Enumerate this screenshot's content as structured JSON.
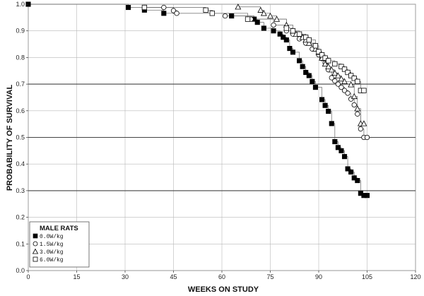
{
  "chart_data": {
    "type": "scatter",
    "xlabel": "WEEKS ON STUDY",
    "ylabel": "PROBABILITY OF SURVIVAL",
    "xlim": [
      0,
      120
    ],
    "ylim": [
      0,
      1
    ],
    "x_ticks": [
      "0",
      "15",
      "30",
      "45",
      "60",
      "75",
      "90",
      "105",
      "120"
    ],
    "y_ticks": [
      "0.0",
      "0.1",
      "0.2",
      "0.3",
      "0.4",
      "0.5",
      "0.6",
      "0.7",
      "0.8",
      "0.9",
      "1.0"
    ],
    "grid": true,
    "legend_title": "MALE RATS",
    "legend_position": "bottom-left",
    "series": [
      {
        "name": "0.0W/kg",
        "marker": "filled-square",
        "points": [
          [
            0,
            1.0
          ],
          [
            31,
            0.988
          ],
          [
            36,
            0.978
          ],
          [
            42,
            0.966
          ],
          [
            63,
            0.956
          ],
          [
            70,
            0.944
          ],
          [
            71,
            0.932
          ],
          [
            73,
            0.91
          ],
          [
            76,
            0.9
          ],
          [
            78,
            0.888
          ],
          [
            79,
            0.876
          ],
          [
            80,
            0.866
          ],
          [
            81,
            0.834
          ],
          [
            82,
            0.82
          ],
          [
            84,
            0.788
          ],
          [
            85,
            0.766
          ],
          [
            86,
            0.744
          ],
          [
            87,
            0.732
          ],
          [
            88,
            0.71
          ],
          [
            89,
            0.688
          ],
          [
            91,
            0.642
          ],
          [
            92,
            0.62
          ],
          [
            93,
            0.598
          ],
          [
            94,
            0.552
          ],
          [
            95,
            0.484
          ],
          [
            96,
            0.462
          ],
          [
            97,
            0.45
          ],
          [
            98,
            0.428
          ],
          [
            99,
            0.382
          ],
          [
            100,
            0.37
          ],
          [
            101,
            0.348
          ],
          [
            102,
            0.338
          ],
          [
            103,
            0.29
          ],
          [
            104,
            0.282
          ],
          [
            105,
            0.282
          ]
        ]
      },
      {
        "name": "1.5W/kg",
        "marker": "open-circle",
        "points": [
          [
            36,
            0.988
          ],
          [
            42,
            0.988
          ],
          [
            45,
            0.976
          ],
          [
            46,
            0.966
          ],
          [
            61,
            0.956
          ],
          [
            69,
            0.944
          ],
          [
            76,
            0.922
          ],
          [
            80,
            0.9
          ],
          [
            82,
            0.888
          ],
          [
            84,
            0.87
          ],
          [
            86,
            0.854
          ],
          [
            88,
            0.832
          ],
          [
            90,
            0.81
          ],
          [
            91,
            0.796
          ],
          [
            92,
            0.78
          ],
          [
            93,
            0.754
          ],
          [
            94,
            0.724
          ],
          [
            95,
            0.712
          ],
          [
            96,
            0.7
          ],
          [
            97,
            0.688
          ],
          [
            98,
            0.676
          ],
          [
            99,
            0.666
          ],
          [
            100,
            0.644
          ],
          [
            101,
            0.622
          ],
          [
            102,
            0.588
          ],
          [
            103,
            0.532
          ],
          [
            104,
            0.5
          ],
          [
            105,
            0.5
          ]
        ]
      },
      {
        "name": "3.0W/kg",
        "marker": "open-triangle",
        "points": [
          [
            65,
            0.99
          ],
          [
            72,
            0.978
          ],
          [
            73,
            0.966
          ],
          [
            75,
            0.956
          ],
          [
            77,
            0.944
          ],
          [
            80,
            0.922
          ],
          [
            82,
            0.9
          ],
          [
            83,
            0.888
          ],
          [
            85,
            0.876
          ],
          [
            86,
            0.866
          ],
          [
            87,
            0.854
          ],
          [
            89,
            0.832
          ],
          [
            90,
            0.82
          ],
          [
            91,
            0.798
          ],
          [
            92,
            0.776
          ],
          [
            93,
            0.766
          ],
          [
            94,
            0.754
          ],
          [
            95,
            0.742
          ],
          [
            96,
            0.732
          ],
          [
            97,
            0.72
          ],
          [
            98,
            0.71
          ],
          [
            100,
            0.698
          ],
          [
            101,
            0.654
          ],
          [
            102,
            0.608
          ],
          [
            103,
            0.552
          ],
          [
            104,
            0.552
          ]
        ]
      },
      {
        "name": "6.0W/kg",
        "marker": "open-square",
        "points": [
          [
            36,
            0.988
          ],
          [
            55,
            0.978
          ],
          [
            57,
            0.966
          ],
          [
            68,
            0.944
          ],
          [
            80,
            0.91
          ],
          [
            82,
            0.9
          ],
          [
            84,
            0.888
          ],
          [
            86,
            0.876
          ],
          [
            87,
            0.866
          ],
          [
            89,
            0.844
          ],
          [
            90,
            0.822
          ],
          [
            91,
            0.81
          ],
          [
            92,
            0.798
          ],
          [
            93,
            0.788
          ],
          [
            95,
            0.776
          ],
          [
            97,
            0.766
          ],
          [
            98,
            0.756
          ],
          [
            99,
            0.744
          ],
          [
            100,
            0.732
          ],
          [
            101,
            0.722
          ],
          [
            102,
            0.71
          ],
          [
            103,
            0.676
          ],
          [
            104,
            0.676
          ]
        ]
      }
    ]
  }
}
